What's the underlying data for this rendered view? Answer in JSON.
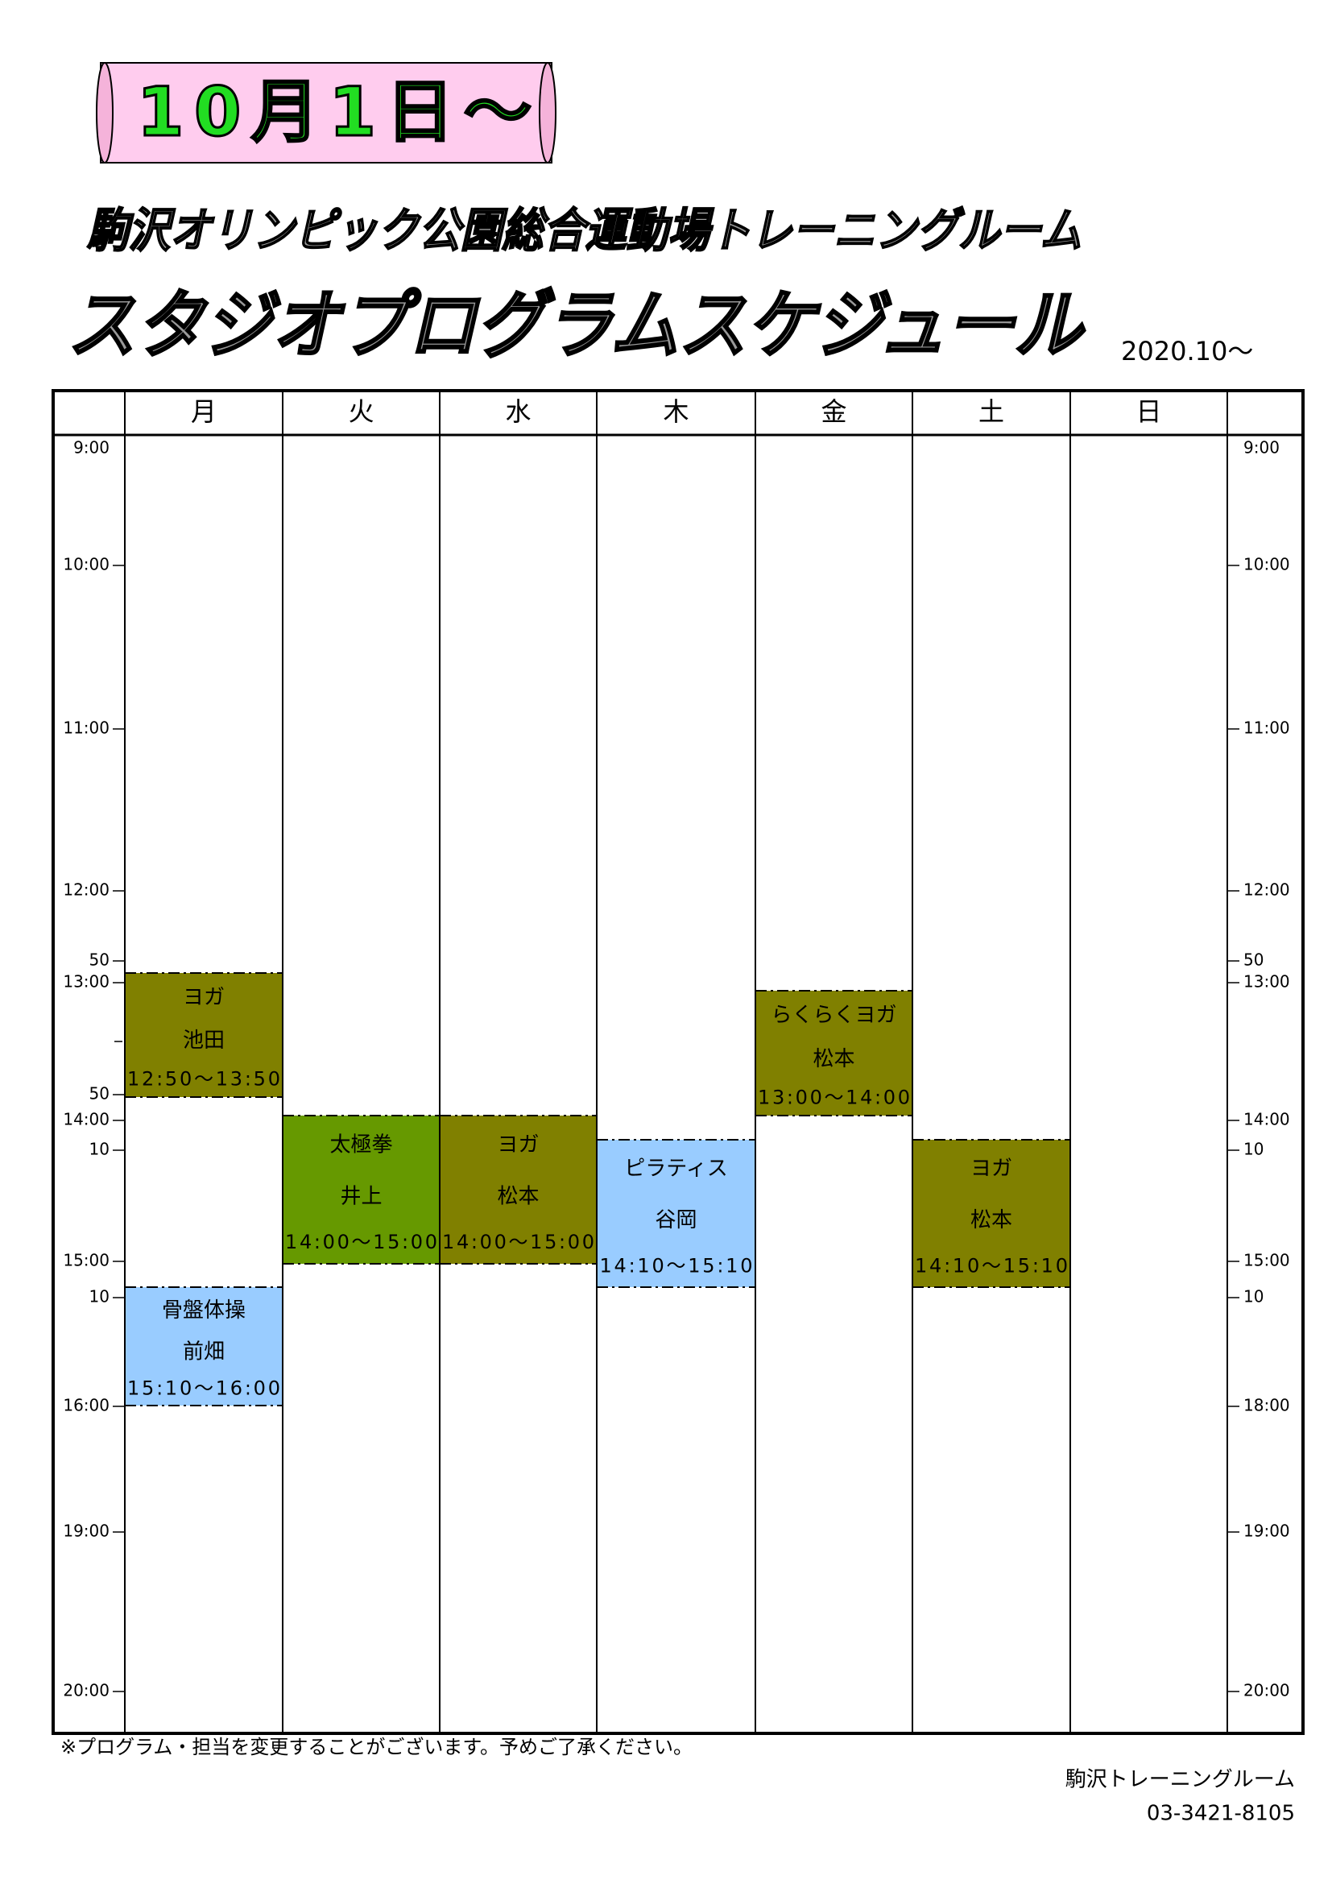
{
  "banner": "10月1日～",
  "title_line1": "駒沢オリンピック公園総合運動場トレーニングルーム",
  "title_line2": "スタジオプログラムスケジュール",
  "date": "2020.10～",
  "columns": [
    {
      "day": "月",
      "events": [
        {
          "name": "ヨガ",
          "instructor": "池田",
          "time": "12:50～13:50",
          "color": "#808000"
        },
        {
          "name": "骨盤体操",
          "instructor": "前畑",
          "time": "15:10～16:00",
          "color": "#99ccff"
        }
      ]
    },
    {
      "day": "火",
      "events": [
        {
          "name": "太極拳",
          "instructor": "井上",
          "time": "14:00～15:00",
          "color": "#669900"
        }
      ]
    },
    {
      "day": "水",
      "events": [
        {
          "name": "ヨガ",
          "instructor": "松本",
          "time": "14:00～15:00",
          "color": "#808000"
        }
      ]
    },
    {
      "day": "木",
      "events": [
        {
          "name": "ピラティス",
          "instructor": "谷岡",
          "time": "14:10～15:10",
          "color": "#99ccff"
        }
      ]
    },
    {
      "day": "金",
      "events": [
        {
          "name": "らくらくヨガ",
          "instructor": "松本",
          "time": "13:00～14:00",
          "color": "#808000"
        }
      ]
    },
    {
      "day": "土",
      "events": [
        {
          "name": "ヨガ",
          "instructor": "松本",
          "time": "14:10～15:10",
          "color": "#808000"
        }
      ]
    },
    {
      "day": "日",
      "events": []
    }
  ],
  "left_times": [
    "9:00",
    "10:00",
    "11:00",
    "12:00",
    "50",
    "13:00",
    "50",
    "14:00",
    "10",
    "15:00",
    "10",
    "16:00",
    "19:00",
    "20:00"
  ],
  "right_times": [
    "9:00",
    "10:00",
    "11:00",
    "12:00",
    "50",
    "13:00",
    "14:00",
    "10",
    "15:00",
    "10",
    "18:00",
    "19:00",
    "20:00"
  ],
  "note": "※プログラム・担当を変更することがございます。予めご了承ください。",
  "organization": "駒沢トレーニングルーム",
  "phone": "03-3421-8105"
}
